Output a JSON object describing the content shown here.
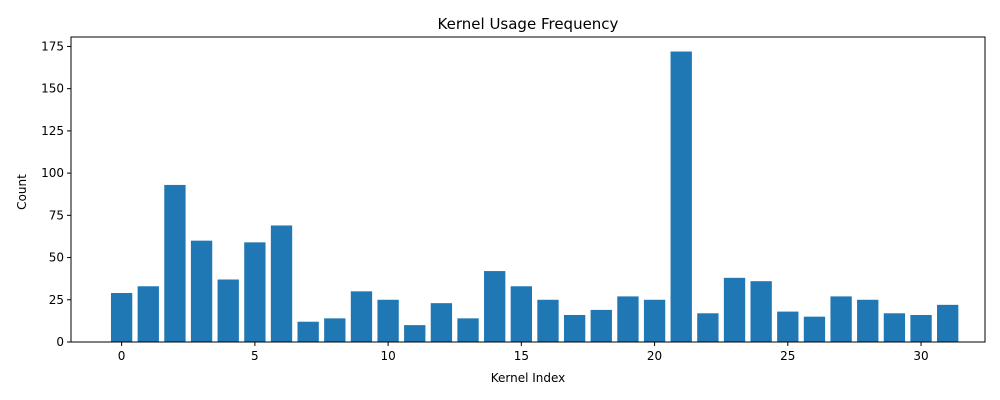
{
  "chart_data": {
    "type": "bar",
    "title": "Kernel Usage Frequency",
    "xlabel": "Kernel Index",
    "ylabel": "Count",
    "x": [
      0,
      1,
      2,
      3,
      4,
      5,
      6,
      7,
      8,
      9,
      10,
      11,
      12,
      13,
      14,
      15,
      16,
      17,
      18,
      19,
      20,
      21,
      22,
      23,
      24,
      25,
      26,
      27,
      28,
      29,
      30,
      31
    ],
    "values": [
      29,
      33,
      93,
      60,
      37,
      59,
      69,
      12,
      14,
      30,
      25,
      10,
      23,
      14,
      42,
      33,
      25,
      16,
      19,
      27,
      25,
      172,
      17,
      38,
      36,
      18,
      15,
      27,
      25,
      17,
      16,
      22
    ],
    "xlim": [
      -1.9,
      32.4
    ],
    "ylim": [
      0,
      180.6
    ],
    "xticks": [
      0,
      5,
      10,
      15,
      20,
      25,
      30
    ],
    "yticks": [
      0,
      25,
      50,
      75,
      100,
      125,
      150,
      175
    ],
    "bar_color": "#1f77b4",
    "grid": false,
    "legend": "none"
  }
}
